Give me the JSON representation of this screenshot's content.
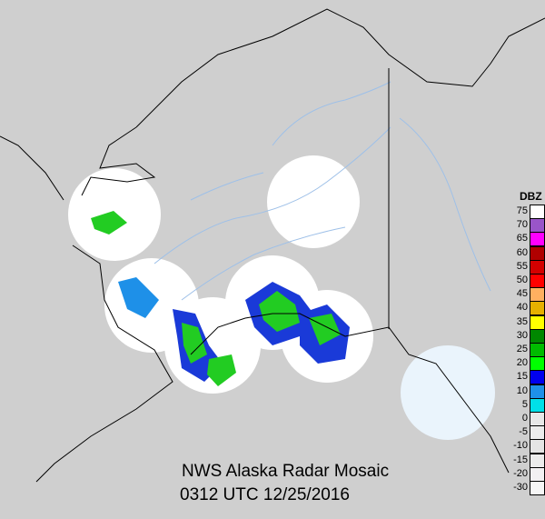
{
  "title": "NWS Alaska Radar Mosaic",
  "timestamp": "0312 UTC 12/25/2016",
  "legend": {
    "title": "DBZ",
    "items": [
      {
        "label": "75",
        "color": "#ffffff"
      },
      {
        "label": "70",
        "color": "#9955c9"
      },
      {
        "label": "65",
        "color": "#ff00ff"
      },
      {
        "label": "60",
        "color": "#b00000"
      },
      {
        "label": "55",
        "color": "#d40000"
      },
      {
        "label": "50",
        "color": "#ff0000"
      },
      {
        "label": "45",
        "color": "#ffb060"
      },
      {
        "label": "40",
        "color": "#e6b000"
      },
      {
        "label": "35",
        "color": "#ffff00"
      },
      {
        "label": "30",
        "color": "#008800"
      },
      {
        "label": "25",
        "color": "#00bb00"
      },
      {
        "label": "20",
        "color": "#00ff00"
      },
      {
        "label": "15",
        "color": "#0000ee"
      },
      {
        "label": "10",
        "color": "#1e90e8"
      },
      {
        "label": "5",
        "color": "#00e0e8"
      },
      {
        "label": "0",
        "color": "#e8e8e8"
      },
      {
        "label": "-5",
        "color": "#ececec"
      },
      {
        "label": "-10",
        "color": "#e4e4e4"
      },
      {
        "label": "-15",
        "color": "#ececec"
      },
      {
        "label": "-20",
        "color": "#f2f0f2"
      },
      {
        "label": "-30",
        "color": "#f6f6f6"
      }
    ]
  },
  "colors": {
    "background": "#cfcfcf",
    "land": "#d0d0d0",
    "rivers": "#9ec0e8",
    "coast": "#000000",
    "radar_coverage": "#ffffff"
  }
}
